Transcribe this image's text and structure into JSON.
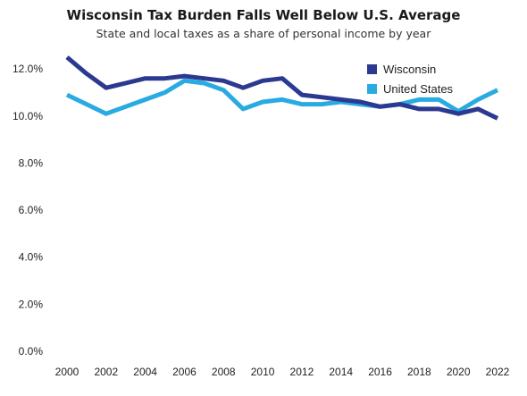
{
  "chart_data": {
    "type": "line",
    "title": "Wisconsin Tax Burden Falls Well Below U.S. Average",
    "subtitle": "State and local taxes as a share of personal income by year",
    "xlabel": "",
    "ylabel": "",
    "x": [
      2000,
      2001,
      2002,
      2003,
      2004,
      2005,
      2006,
      2007,
      2008,
      2009,
      2010,
      2011,
      2012,
      2013,
      2014,
      2015,
      2016,
      2017,
      2018,
      2019,
      2020,
      2021,
      2022
    ],
    "x_ticks": [
      "2000",
      "2002",
      "2004",
      "2006",
      "2008",
      "2010",
      "2012",
      "2014",
      "2016",
      "2018",
      "2020",
      "2022"
    ],
    "y_ticks": [
      "0.0%",
      "2.0%",
      "4.0%",
      "6.0%",
      "8.0%",
      "10.0%",
      "12.0%"
    ],
    "ylim": [
      0,
      12.5
    ],
    "xlim": [
      2000,
      2022
    ],
    "grid": false,
    "legend_position": "top-right",
    "series": [
      {
        "name": "Wisconsin",
        "color": "#2b3990",
        "values": [
          12.5,
          11.8,
          11.2,
          11.4,
          11.6,
          11.6,
          11.7,
          11.6,
          11.5,
          11.2,
          11.5,
          11.6,
          10.9,
          10.8,
          10.7,
          10.6,
          10.4,
          10.5,
          10.3,
          10.3,
          10.1,
          10.3,
          9.9
        ]
      },
      {
        "name": "United States",
        "color": "#29abe2",
        "values": [
          10.9,
          10.5,
          10.1,
          10.4,
          10.7,
          11.0,
          11.5,
          11.4,
          11.1,
          10.3,
          10.6,
          10.7,
          10.5,
          10.5,
          10.6,
          10.5,
          10.4,
          10.5,
          10.7,
          10.7,
          10.2,
          10.7,
          11.1
        ]
      }
    ]
  }
}
